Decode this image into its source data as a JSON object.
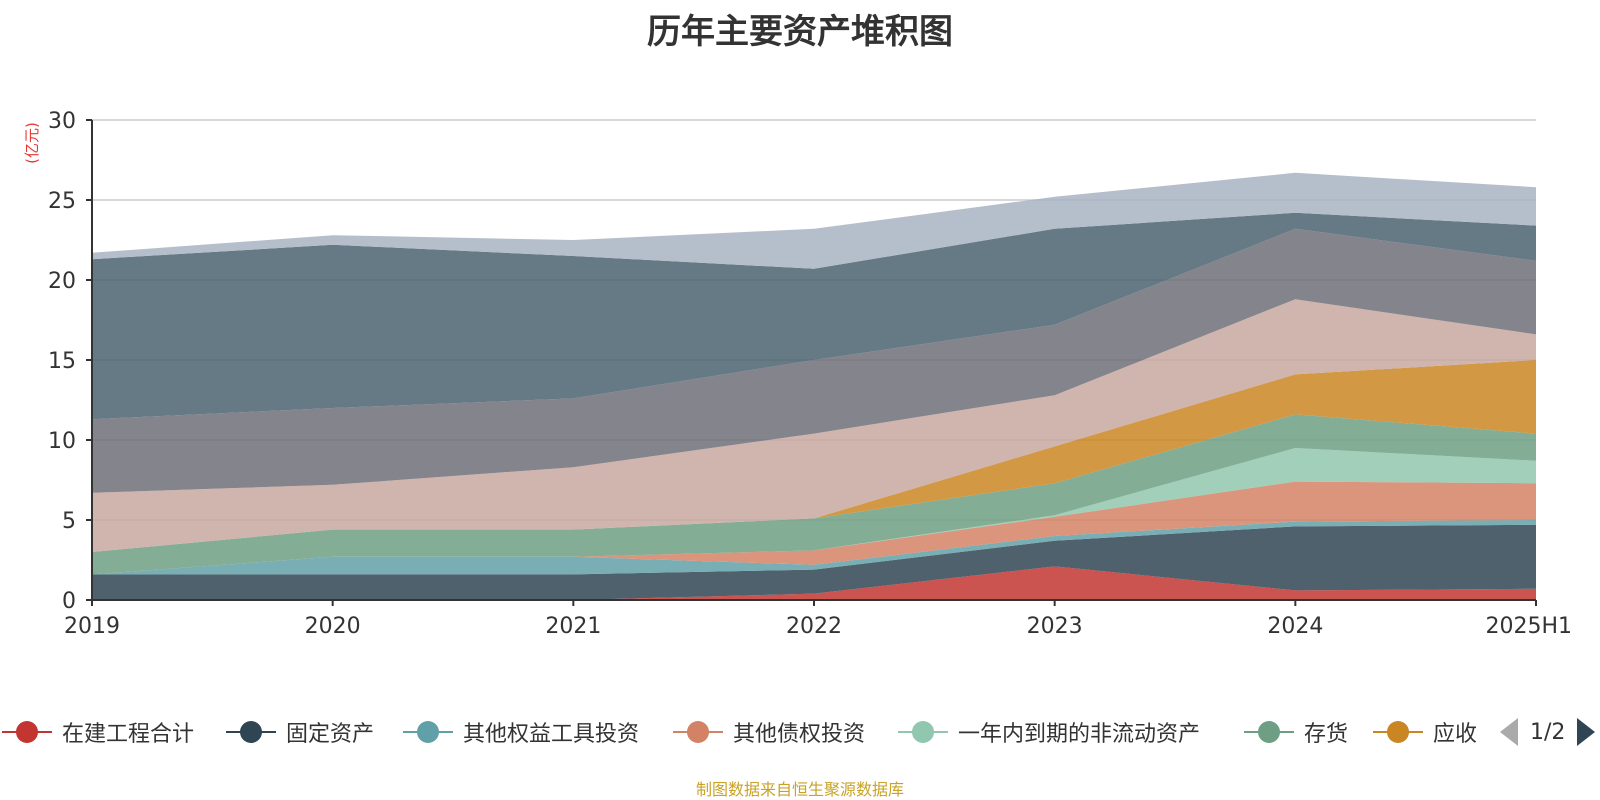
{
  "title": "历年主要资产堆积图",
  "unit_label": "(亿元)",
  "source_note": "制图数据来自恒生聚源数据库",
  "pager": {
    "text": "1/2"
  },
  "legend": [
    {
      "name": "在建工程合计",
      "color": "#c23531"
    },
    {
      "name": "固定资产",
      "color": "#2f4554"
    },
    {
      "name": "其他权益工具投资",
      "color": "#61a0a8"
    },
    {
      "name": "其他债权投资",
      "color": "#d48265"
    },
    {
      "name": "一年内到期的非流动资产",
      "color": "#91c7ae"
    },
    {
      "name": "存货",
      "color": "#6e9f84"
    },
    {
      "name": "应收",
      "color": "#ca8622"
    }
  ],
  "chart_data": {
    "type": "area",
    "stacked": true,
    "title": "历年主要资产堆积图",
    "ylabel": "(亿元)",
    "ylim": [
      0,
      30
    ],
    "yticks": [
      0,
      5,
      10,
      15,
      20,
      25,
      30
    ],
    "grid": true,
    "legend_position": "bottom",
    "categories": [
      "2019",
      "2020",
      "2021",
      "2022",
      "2023",
      "2024",
      "2025H1"
    ],
    "series": [
      {
        "name": "在建工程合计",
        "color": "#c23531",
        "values": [
          0,
          0,
          0,
          0.4,
          2.1,
          0.6,
          0.7
        ]
      },
      {
        "name": "固定资产",
        "color": "#2f4554",
        "values": [
          1.6,
          1.6,
          1.6,
          1.5,
          1.6,
          4.0,
          4.0
        ]
      },
      {
        "name": "其他权益工具投资",
        "color": "#61a0a8",
        "values": [
          0,
          1.1,
          1.1,
          0.3,
          0.3,
          0.3,
          0.3
        ]
      },
      {
        "name": "其他债权投资",
        "color": "#d48265",
        "values": [
          0,
          0,
          0,
          0.9,
          1.2,
          2.5,
          2.3
        ]
      },
      {
        "name": "一年内到期的非流动资产",
        "color": "#91c7ae",
        "values": [
          0,
          0,
          0,
          0,
          0.1,
          2.1,
          1.4
        ]
      },
      {
        "name": "存货",
        "color": "#6e9f84",
        "values": [
          1.4,
          1.7,
          1.7,
          2.0,
          2.0,
          2.1,
          1.7
        ]
      },
      {
        "name": "应收",
        "color": "#ca8622",
        "values": [
          0,
          0,
          0,
          0,
          2.3,
          2.5,
          4.6
        ]
      },
      {
        "color": "#c8a7a0",
        "values": [
          3.7,
          2.8,
          3.9,
          5.3,
          3.2,
          4.7,
          1.6
        ]
      },
      {
        "color": "#6e6f78",
        "values": [
          4.6,
          4.8,
          4.3,
          4.6,
          4.4,
          4.4,
          4.6
        ]
      },
      {
        "color": "#4b6370",
        "values": [
          10.0,
          10.2,
          8.9,
          5.7,
          6.0,
          1.0,
          2.2
        ]
      },
      {
        "color": "#a8b3c2",
        "values": [
          0.4,
          0.6,
          1.0,
          2.5,
          2.0,
          2.5,
          2.4
        ]
      }
    ]
  }
}
